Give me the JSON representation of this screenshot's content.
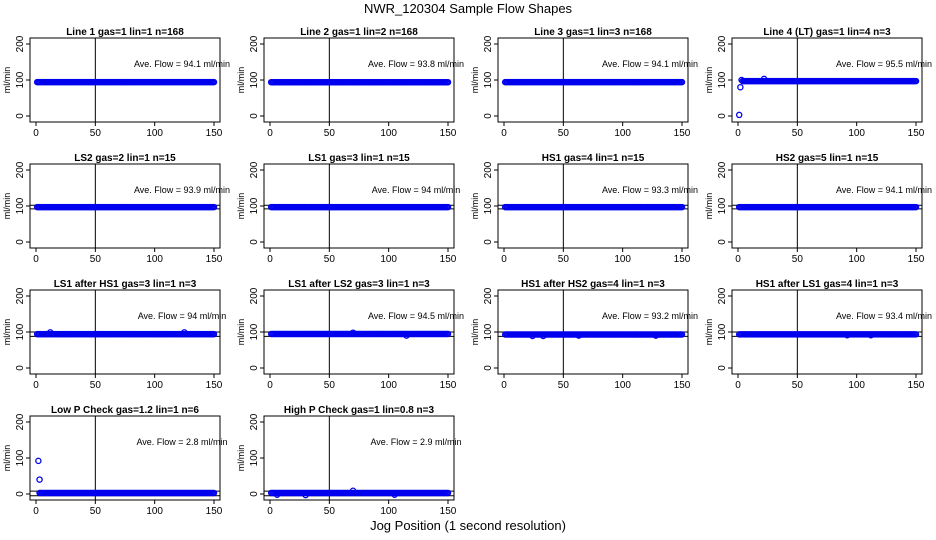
{
  "figure": {
    "title": "NWR_120304  Sample Flow Shapes",
    "xlabel": "Jog Position (1 second resolution)",
    "point_color": "#0000ee"
  },
  "chart_data": [
    {
      "type": "scatter",
      "title": "Line 1 gas=1 lin=1 n=168",
      "ylabel": "ml/min",
      "annotation": "Ave. Flow = 94.1  ml/min",
      "xlim": [
        0,
        150
      ],
      "ylim": [
        0,
        200
      ],
      "x_ticks": [
        0,
        50,
        100,
        150
      ],
      "y_ticks": [
        0,
        100,
        200
      ],
      "vline_x": 50,
      "hlines_y": [],
      "series": [
        {
          "x_range": [
            1,
            150
          ],
          "level": 94.1,
          "extra": []
        }
      ]
    },
    {
      "type": "scatter",
      "title": "Line 2 gas=1 lin=2 n=168",
      "ylabel": "ml/min",
      "annotation": "Ave. Flow = 93.8  ml/min",
      "xlim": [
        0,
        150
      ],
      "ylim": [
        0,
        200
      ],
      "x_ticks": [
        0,
        50,
        100,
        150
      ],
      "y_ticks": [
        0,
        100,
        200
      ],
      "vline_x": 50,
      "hlines_y": [],
      "series": [
        {
          "x_range": [
            1,
            150
          ],
          "level": 93.8,
          "extra": []
        }
      ]
    },
    {
      "type": "scatter",
      "title": "Line 3 gas=1 lin=3 n=168",
      "ylabel": "ml/min",
      "annotation": "Ave. Flow = 94.1  ml/min",
      "xlim": [
        0,
        150
      ],
      "ylim": [
        0,
        200
      ],
      "x_ticks": [
        0,
        50,
        100,
        150
      ],
      "y_ticks": [
        0,
        100,
        200
      ],
      "vline_x": 50,
      "hlines_y": [],
      "series": [
        {
          "x_range": [
            1,
            150
          ],
          "level": 94.1,
          "extra": []
        }
      ]
    },
    {
      "type": "scatter",
      "title": "Line 4 (LT) gas=1 lin=4 n=3",
      "ylabel": "ml/min",
      "annotation": "Ave. Flow = 95.5  ml/min",
      "xlim": [
        0,
        150
      ],
      "ylim": [
        0,
        200
      ],
      "x_ticks": [
        0,
        50,
        100,
        150
      ],
      "y_ticks": [
        0,
        100,
        200
      ],
      "vline_x": 50,
      "hlines_y": [],
      "series": [
        {
          "x_range": [
            4,
            150
          ],
          "level": 97,
          "extra": [
            [
              1,
              3
            ],
            [
              2,
              80
            ],
            [
              3,
              100
            ],
            [
              22,
              103
            ]
          ]
        }
      ]
    },
    {
      "type": "scatter",
      "title": "LS2 gas=2 lin=1 n=15",
      "ylabel": "ml/min",
      "annotation": "Ave. Flow = 93.9  ml/min",
      "xlim": [
        0,
        150
      ],
      "ylim": [
        0,
        200
      ],
      "x_ticks": [
        0,
        50,
        100,
        150
      ],
      "y_ticks": [
        0,
        100,
        200
      ],
      "vline_x": 50,
      "hlines_y": [
        92,
        102
      ],
      "series": [
        {
          "x_range": [
            1,
            150
          ],
          "level": 97,
          "extra": []
        }
      ]
    },
    {
      "type": "scatter",
      "title": "LS1 gas=3 lin=1 n=15",
      "ylabel": "ml/min",
      "annotation": "Ave. Flow = 94  ml/min",
      "xlim": [
        0,
        150
      ],
      "ylim": [
        0,
        200
      ],
      "x_ticks": [
        0,
        50,
        100,
        150
      ],
      "y_ticks": [
        0,
        100,
        200
      ],
      "vline_x": 50,
      "hlines_y": [
        92,
        102
      ],
      "series": [
        {
          "x_range": [
            1,
            150
          ],
          "level": 97,
          "extra": []
        }
      ]
    },
    {
      "type": "scatter",
      "title": "HS1 gas=4 lin=1 n=15",
      "ylabel": "ml/min",
      "annotation": "Ave. Flow = 93.3  ml/min",
      "xlim": [
        0,
        150
      ],
      "ylim": [
        0,
        200
      ],
      "x_ticks": [
        0,
        50,
        100,
        150
      ],
      "y_ticks": [
        0,
        100,
        200
      ],
      "vline_x": 50,
      "hlines_y": [
        92,
        102
      ],
      "series": [
        {
          "x_range": [
            1,
            150
          ],
          "level": 97,
          "extra": []
        }
      ]
    },
    {
      "type": "scatter",
      "title": "HS2 gas=5 lin=1 n=15",
      "ylabel": "ml/min",
      "annotation": "Ave. Flow = 94.1  ml/min",
      "xlim": [
        0,
        150
      ],
      "ylim": [
        0,
        200
      ],
      "x_ticks": [
        0,
        50,
        100,
        150
      ],
      "y_ticks": [
        0,
        100,
        200
      ],
      "vline_x": 50,
      "hlines_y": [
        92,
        102
      ],
      "series": [
        {
          "x_range": [
            1,
            150
          ],
          "level": 97,
          "extra": []
        }
      ]
    },
    {
      "type": "scatter",
      "title": "LS1 after HS1 gas=3 lin=1 n=3",
      "ylabel": "ml/min",
      "annotation": "Ave. Flow = 94  ml/min",
      "xlim": [
        0,
        150
      ],
      "ylim": [
        0,
        200
      ],
      "x_ticks": [
        0,
        50,
        100,
        150
      ],
      "y_ticks": [
        0,
        100,
        200
      ],
      "vline_x": 50,
      "hlines_y": [
        88,
        100
      ],
      "series": [
        {
          "x_range": [
            1,
            150
          ],
          "level": 94,
          "extra": [
            [
              12,
              99
            ],
            [
              125,
              99
            ]
          ]
        }
      ]
    },
    {
      "type": "scatter",
      "title": "LS1 after LS2 gas=3 lin=1 n=3",
      "ylabel": "ml/min",
      "annotation": "Ave. Flow = 94.5  ml/min",
      "xlim": [
        0,
        150
      ],
      "ylim": [
        0,
        200
      ],
      "x_ticks": [
        0,
        50,
        100,
        150
      ],
      "y_ticks": [
        0,
        100,
        200
      ],
      "vline_x": 50,
      "hlines_y": [
        88,
        100
      ],
      "series": [
        {
          "x_range": [
            1,
            150
          ],
          "level": 94.5,
          "extra": [
            [
              70,
              98
            ],
            [
              115,
              90
            ]
          ]
        }
      ]
    },
    {
      "type": "scatter",
      "title": "HS1 after HS2 gas=4 lin=1 n=3",
      "ylabel": "ml/min",
      "annotation": "Ave. Flow = 93.2  ml/min",
      "xlim": [
        0,
        150
      ],
      "ylim": [
        0,
        200
      ],
      "x_ticks": [
        0,
        50,
        100,
        150
      ],
      "y_ticks": [
        0,
        100,
        200
      ],
      "vline_x": 50,
      "hlines_y": [
        88,
        100
      ],
      "series": [
        {
          "x_range": [
            1,
            150
          ],
          "level": 93.2,
          "extra": [
            [
              24,
              89
            ],
            [
              33,
              89
            ],
            [
              63,
              90
            ],
            [
              128,
              90
            ]
          ]
        }
      ]
    },
    {
      "type": "scatter",
      "title": "HS1 after LS1 gas=4 lin=1 n=3",
      "ylabel": "ml/min",
      "annotation": "Ave. Flow = 93.4  ml/min",
      "xlim": [
        0,
        150
      ],
      "ylim": [
        0,
        200
      ],
      "x_ticks": [
        0,
        50,
        100,
        150
      ],
      "y_ticks": [
        0,
        100,
        200
      ],
      "vline_x": 50,
      "hlines_y": [
        88,
        100
      ],
      "series": [
        {
          "x_range": [
            1,
            150
          ],
          "level": 93.4,
          "extra": [
            [
              92,
              91
            ],
            [
              112,
              91
            ]
          ]
        }
      ]
    },
    {
      "type": "scatter",
      "title": "Low P Check gas=1.2 lin=1 n=6",
      "ylabel": "ml/min",
      "annotation": "Ave. Flow = 2.8  ml/min",
      "xlim": [
        0,
        150
      ],
      "ylim": [
        0,
        200
      ],
      "x_ticks": [
        0,
        50,
        100,
        150
      ],
      "y_ticks": [
        0,
        100,
        200
      ],
      "vline_x": 50,
      "hlines_y": [
        -5,
        8
      ],
      "series": [
        {
          "x_range": [
            3,
            150
          ],
          "level": 2.8,
          "extra": [
            [
              2,
              92
            ],
            [
              3,
              40
            ]
          ]
        }
      ]
    },
    {
      "type": "scatter",
      "title": "High P Check gas=1 lin=0.8 n=3",
      "ylabel": "ml/min",
      "annotation": "Ave. Flow = 2.9  ml/min",
      "xlim": [
        0,
        150
      ],
      "ylim": [
        0,
        200
      ],
      "x_ticks": [
        0,
        50,
        100,
        150
      ],
      "y_ticks": [
        0,
        100,
        200
      ],
      "vline_x": 50,
      "hlines_y": [
        -5,
        8
      ],
      "series": [
        {
          "x_range": [
            1,
            150
          ],
          "level": 2.9,
          "extra": [
            [
              70,
              9
            ],
            [
              6,
              -2
            ],
            [
              30,
              -3
            ],
            [
              105,
              -2
            ]
          ]
        }
      ]
    }
  ]
}
